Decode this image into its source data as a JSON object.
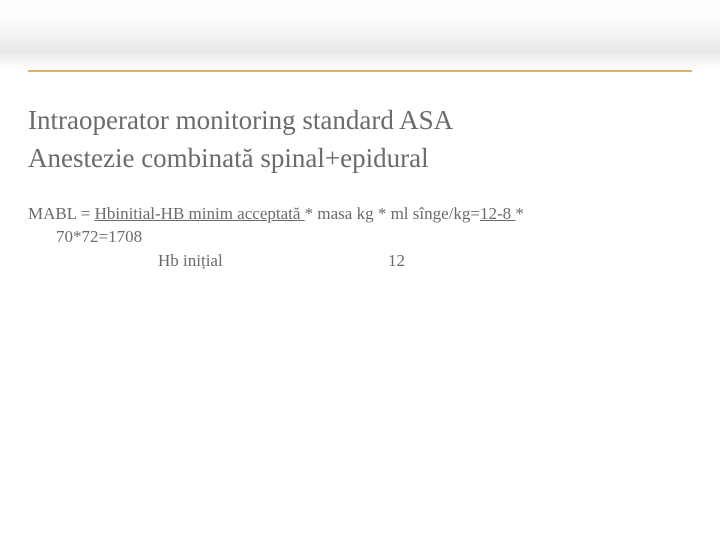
{
  "slide": {
    "background_top_gradient": [
      "#ffffff",
      "#e6e6e6",
      "#ffffff"
    ],
    "divider_color": "#d6b56a",
    "text_color": "#6b6b6b",
    "main_fontsize": 27,
    "sub_fontsize": 17,
    "font_family": "Georgia, serif"
  },
  "content": {
    "line1": "Intraoperator monitoring standard ASA",
    "line2": "Anestezie combinată spinal+epidural",
    "formula": {
      "prefix": "MABL = ",
      "underlined1": "Hbinitial-HB minim acceptată ",
      "mid": "* masa kg * ml sînge/kg=",
      "underlined2": "12-8 ",
      "suffix": "*",
      "cont": "70*72=1708"
    },
    "table": {
      "rows": [
        {
          "label": "Hb inițial",
          "value": "12"
        }
      ]
    }
  }
}
